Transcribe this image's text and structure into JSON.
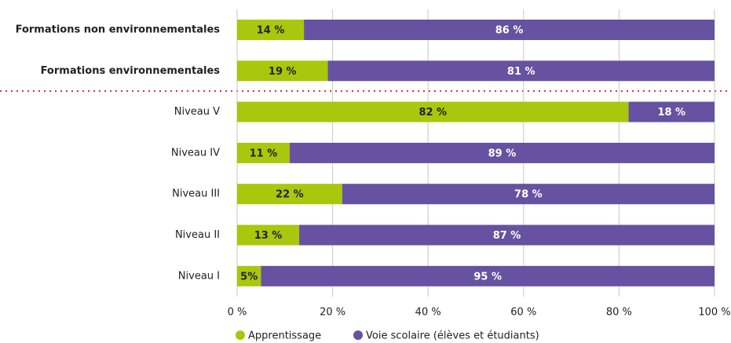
{
  "chart_data": {
    "type": "stacked_barh",
    "categories": [
      "Formations non environnementales",
      "Formations environnementales",
      "Niveau V",
      "Niveau IV",
      "Niveau III",
      "Niveau II",
      "Niveau I"
    ],
    "series": [
      {
        "name": "Apprentissage",
        "color": "#a9c70c",
        "values": [
          14,
          19,
          82,
          11,
          22,
          13,
          5
        ],
        "value_labels": [
          "14 %",
          "19 %",
          "82 %",
          "11 %",
          "22 %",
          "13 %",
          "5%"
        ]
      },
      {
        "name": "Voie scolaire (élèves et étudiants)",
        "color": "#6652a0",
        "values": [
          86,
          81,
          18,
          89,
          78,
          87,
          95
        ],
        "value_labels": [
          "86 %",
          "81 %",
          "18 %",
          "89 %",
          "78 %",
          "87 %",
          "95 %"
        ]
      }
    ],
    "xlim": [
      0,
      100
    ],
    "xticks": [
      {
        "value": 0,
        "label": "0 %"
      },
      {
        "value": 20,
        "label": "20 %"
      },
      {
        "value": 40,
        "label": "40 %"
      },
      {
        "value": 60,
        "label": "60 %"
      },
      {
        "value": 80,
        "label": "80 %"
      },
      {
        "value": 100,
        "label": "100 %"
      }
    ],
    "grid": true
  }
}
